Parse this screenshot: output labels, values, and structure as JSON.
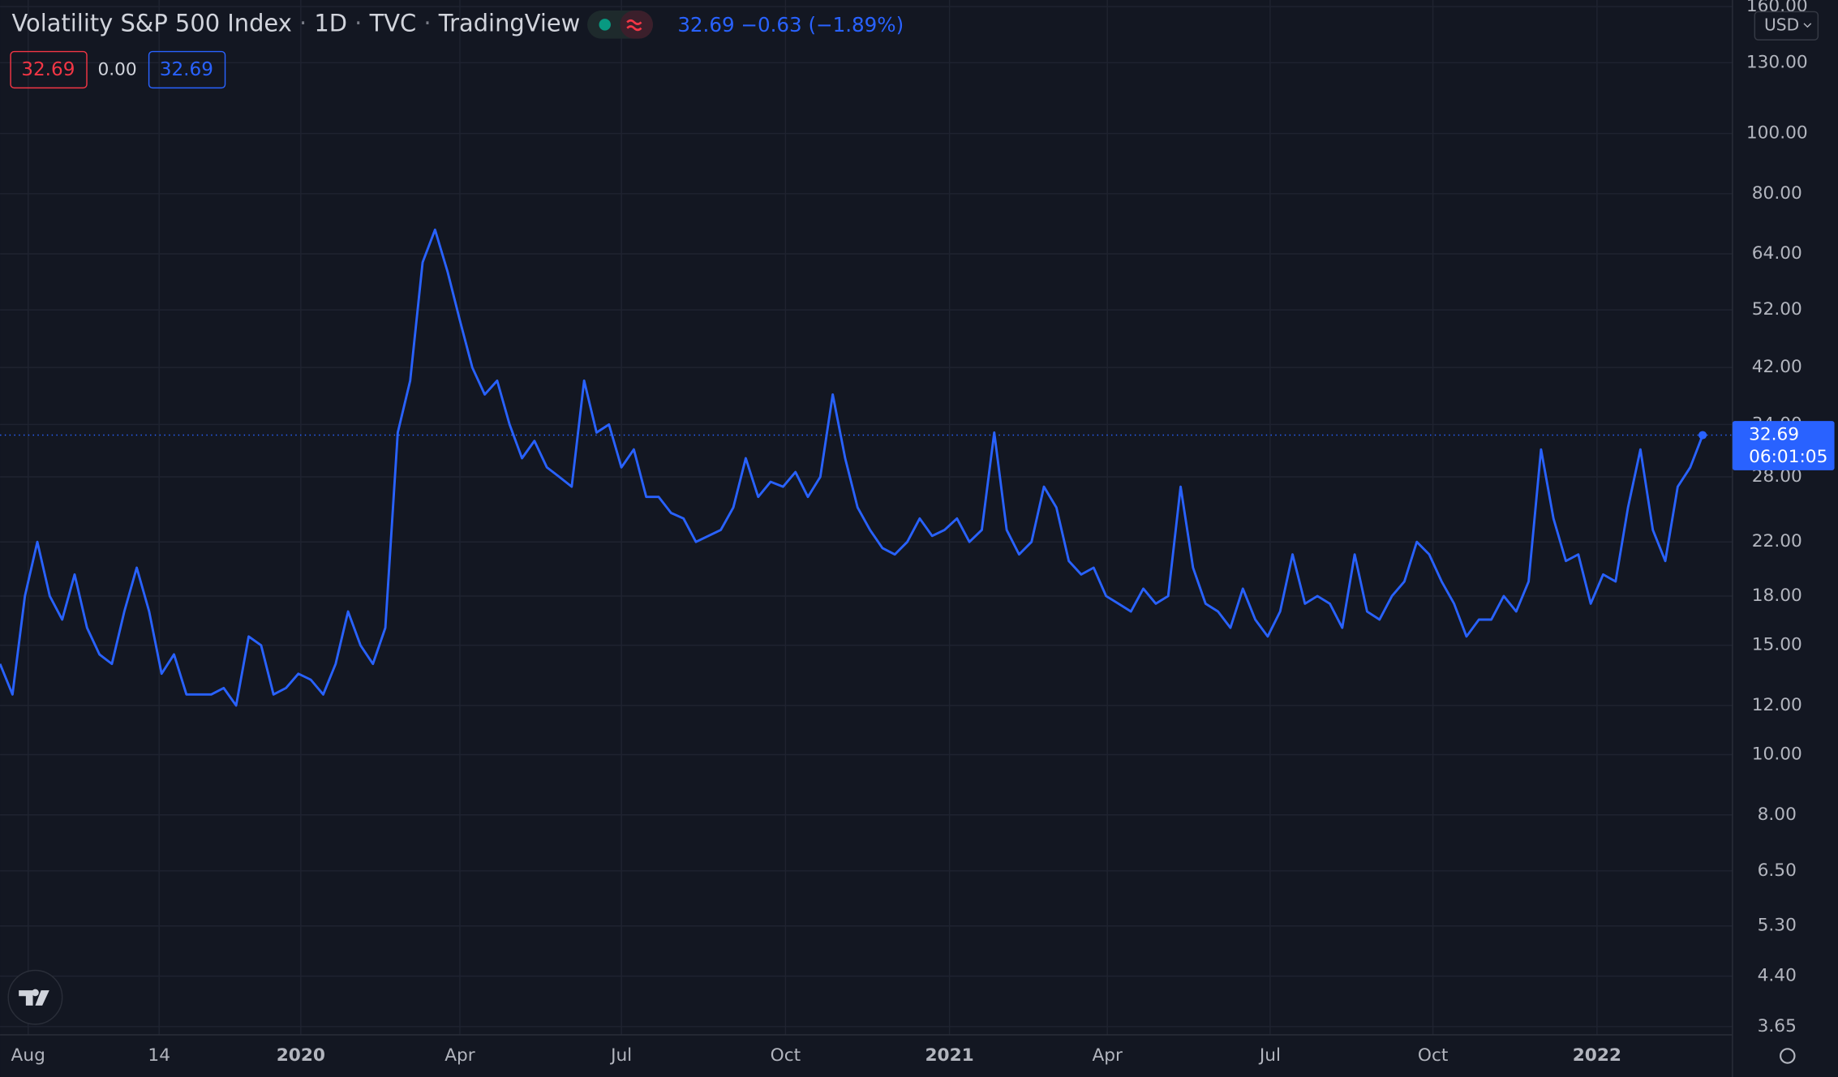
{
  "header": {
    "title": "Volatility S&P 500 Index",
    "interval": "1D",
    "exchange": "TVC",
    "source": "TradingView",
    "last": "32.69",
    "change": "−0.63",
    "change_pct": "(−1.89%)",
    "boxes": [
      "32.69",
      "0.00",
      "32.69"
    ],
    "currency": "USD",
    "countdown": "06:01:05",
    "price_label": "32.69"
  },
  "chart_data": {
    "type": "line",
    "log_scale": true,
    "grid": true,
    "color": "#2962ff",
    "values": [
      14,
      12.5,
      18,
      22,
      18,
      16.5,
      19.5,
      16,
      14.5,
      14,
      17,
      20,
      17,
      13.5,
      14.5,
      12.5,
      12.5,
      12.5,
      12.8,
      12,
      15.5,
      15,
      12.5,
      12.8,
      13.5,
      13.2,
      12.5,
      14,
      17,
      15,
      14,
      16,
      33,
      40,
      62,
      70,
      60,
      50,
      42,
      38,
      40,
      34,
      30,
      32,
      29,
      28,
      27,
      40,
      33,
      34,
      29,
      31,
      26,
      26,
      24.5,
      24,
      22,
      22.5,
      23,
      25,
      30,
      26,
      27.5,
      27,
      28.5,
      26,
      28,
      38,
      30,
      25,
      23,
      21.5,
      21,
      22,
      24,
      22.5,
      23,
      24,
      22,
      23,
      33,
      23,
      21,
      22,
      27,
      25,
      20.5,
      19.5,
      20,
      18,
      17.5,
      17,
      18.5,
      17.5,
      18,
      27,
      20,
      17.5,
      17,
      16,
      18.5,
      16.5,
      15.5,
      17,
      21,
      17.5,
      18,
      17.5,
      16,
      21,
      17,
      16.5,
      18,
      19,
      22,
      21,
      19,
      17.5,
      15.5,
      16.5,
      16.5,
      18,
      17,
      19,
      31,
      24,
      20.5,
      21,
      17.5,
      19.5,
      19,
      25,
      31,
      23,
      20.5,
      27,
      29,
      32.69
    ],
    "xlim": [
      0,
      139.4
    ],
    "xticks": [
      {
        "value": 2.26,
        "label": "Aug"
      },
      {
        "value": 12.8,
        "label": "14"
      },
      {
        "value": 24.2,
        "label": "2020"
      },
      {
        "value": 37,
        "label": "Apr"
      },
      {
        "value": 50,
        "label": "Jul"
      },
      {
        "value": 63.2,
        "label": "Oct"
      },
      {
        "value": 76.4,
        "label": "2021"
      },
      {
        "value": 89.1,
        "label": "Apr"
      },
      {
        "value": 102.2,
        "label": "Jul"
      },
      {
        "value": 115.3,
        "label": "Oct"
      },
      {
        "value": 128.5,
        "label": "2022"
      }
    ],
    "ylim": [
      3.54,
      164
    ],
    "yticks": [
      {
        "value": 3.65,
        "label": "3.65"
      },
      {
        "value": 4.4,
        "label": "4.40"
      },
      {
        "value": 5.3,
        "label": "5.30"
      },
      {
        "value": 6.5,
        "label": "6.50"
      },
      {
        "value": 8,
        "label": "8.00"
      },
      {
        "value": 10,
        "label": "10.00"
      },
      {
        "value": 12,
        "label": "12.00"
      },
      {
        "value": 15,
        "label": "15.00"
      },
      {
        "value": 18,
        "label": "18.00"
      },
      {
        "value": 22,
        "label": "22.00"
      },
      {
        "value": 28,
        "label": "28.00"
      },
      {
        "value": 34,
        "label": "34.00"
      },
      {
        "value": 42,
        "label": "42.00"
      },
      {
        "value": 52,
        "label": "52.00"
      },
      {
        "value": 64,
        "label": "64.00"
      },
      {
        "value": 80,
        "label": "80.00"
      },
      {
        "value": 100,
        "label": "100.00"
      },
      {
        "value": 130,
        "label": "130.00"
      },
      {
        "value": 160,
        "label": "160.00"
      }
    ]
  }
}
